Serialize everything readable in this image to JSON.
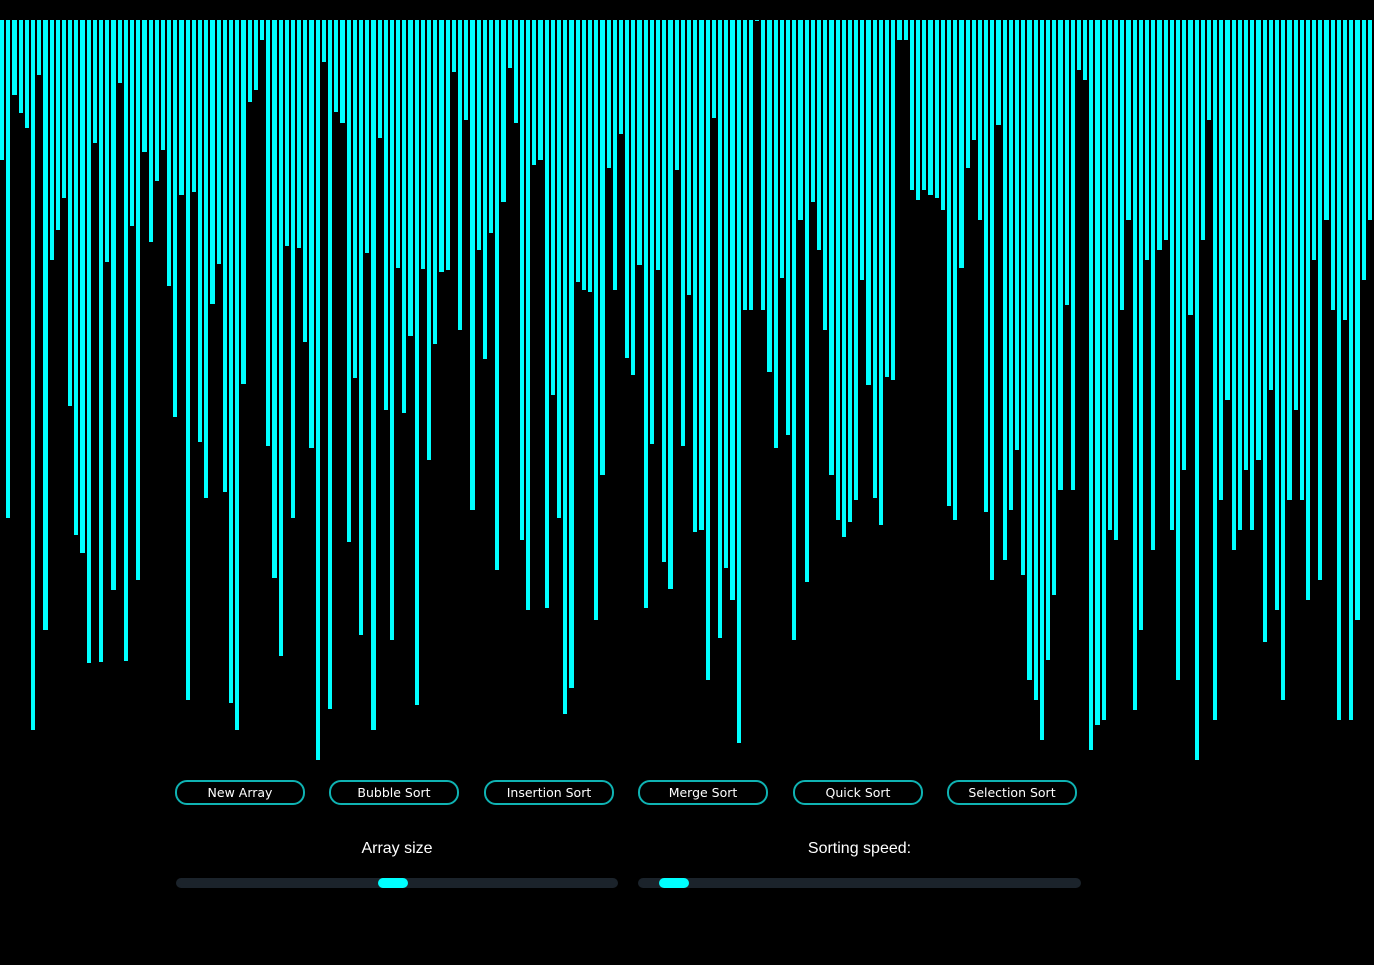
{
  "colors": {
    "bar": "#00ffff",
    "background": "#000000",
    "button_border": "#0fb3b3",
    "track": "#1b232b",
    "thumb": "#00ffff"
  },
  "buttons": {
    "new_array": "New Array",
    "bubble_sort": "Bubble Sort",
    "insertion_sort": "Insertion Sort",
    "merge_sort": "Merge Sort",
    "quick_sort": "Quick Sort",
    "selection_sort": "Selection Sort"
  },
  "sliders": {
    "array_size": {
      "label": "Array size",
      "value": 0.49
    },
    "sorting_speed": {
      "label": "Sorting speed:",
      "value": 0.05
    }
  },
  "array_values": [
    140,
    498,
    75,
    93,
    108,
    710,
    55,
    610,
    240,
    210,
    178,
    386,
    515,
    533,
    643,
    123,
    642,
    242,
    570,
    63,
    641,
    206,
    560,
    132,
    222,
    161,
    130,
    266,
    397,
    175,
    680,
    172,
    422,
    478,
    284,
    244,
    472,
    683,
    710,
    364,
    82,
    70,
    20,
    426,
    558,
    636,
    226,
    498,
    228,
    322,
    428,
    740,
    42,
    689,
    92,
    103,
    522,
    358,
    615,
    233,
    710,
    118,
    390,
    620,
    248,
    393,
    316,
    685,
    249,
    440,
    324,
    252,
    250,
    52,
    310,
    100,
    490,
    230,
    339,
    213,
    550,
    182,
    48,
    103,
    520,
    590,
    145,
    140,
    588,
    375,
    498,
    694,
    668,
    262,
    270,
    272,
    600,
    455,
    148,
    270,
    114,
    338,
    355,
    245,
    588,
    424,
    250,
    542,
    569,
    150,
    426,
    275,
    512,
    510,
    660,
    98,
    618,
    548,
    580,
    723,
    290,
    290,
    0,
    290,
    352,
    428,
    258,
    415,
    620,
    200,
    562,
    182,
    230,
    310,
    455,
    500,
    517,
    502,
    480,
    260,
    365,
    478,
    505,
    357,
    360,
    20,
    20,
    170,
    180,
    170,
    175,
    178,
    190,
    486,
    500,
    248,
    148,
    120,
    200,
    492,
    560,
    105,
    540,
    490,
    430,
    555,
    660,
    680,
    720,
    640,
    575,
    470,
    285,
    470,
    50,
    60,
    730,
    705,
    700,
    510,
    520,
    290,
    200,
    690,
    610,
    240,
    530,
    230,
    220,
    510,
    660,
    450,
    295,
    750,
    220,
    100,
    700,
    480,
    380,
    530,
    510,
    450,
    510,
    440,
    622,
    370,
    590,
    680,
    480,
    390,
    480,
    580,
    240,
    560,
    200,
    290,
    700,
    300,
    700,
    600,
    260,
    200
  ]
}
